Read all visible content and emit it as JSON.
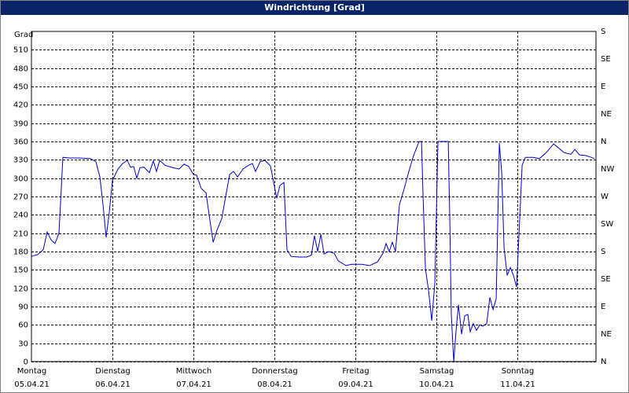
{
  "chart_data": {
    "type": "line",
    "title": "Windrichtung [Grad]",
    "ylabel": "Grad",
    "xlim": [
      0,
      6.97
    ],
    "ylim": [
      0,
      540
    ],
    "y2lim": [
      0,
      540
    ],
    "xticks": [
      {
        "value": 0,
        "label": "Montag"
      },
      {
        "value": 1,
        "label": "Dienstag"
      },
      {
        "value": 2,
        "label": "Mittwoch"
      },
      {
        "value": 3,
        "label": "Donnerstag"
      },
      {
        "value": 4,
        "label": "Freitag"
      },
      {
        "value": 5,
        "label": "Samstag"
      },
      {
        "value": 6,
        "label": "Sonntag"
      }
    ],
    "xtick_dates": [
      "05.04.21",
      "06.04.21",
      "07.04.21",
      "08.04.21",
      "09.04.21",
      "10.04.21",
      "11.04.21"
    ],
    "yticks": [
      0,
      30,
      60,
      90,
      120,
      150,
      180,
      210,
      240,
      270,
      300,
      330,
      360,
      390,
      420,
      450,
      480,
      510
    ],
    "y2ticks": [
      {
        "value": 0,
        "label": "N"
      },
      {
        "value": 45,
        "label": "NE"
      },
      {
        "value": 90,
        "label": "E"
      },
      {
        "value": 135,
        "label": "SE"
      },
      {
        "value": 180,
        "label": "S"
      },
      {
        "value": 225,
        "label": "SW"
      },
      {
        "value": 270,
        "label": "W"
      },
      {
        "value": 315,
        "label": "NW"
      },
      {
        "value": 360,
        "label": "N"
      },
      {
        "value": 405,
        "label": "NE"
      },
      {
        "value": 450,
        "label": "E"
      },
      {
        "value": 495,
        "label": "SE"
      },
      {
        "value": 540,
        "label": "S"
      }
    ],
    "grid": true,
    "series": [
      {
        "color": "#0000cc",
        "x": [
          0,
          0.078,
          0.146,
          0.194,
          0.243,
          0.291,
          0.34,
          0.388,
          0.466,
          0.583,
          0.728,
          0.796,
          0.845,
          0.883,
          0.922,
          0.961,
          1.0,
          1.068,
          1.126,
          1.184,
          1.223,
          1.262,
          1.301,
          1.34,
          1.388,
          1.456,
          1.505,
          1.544,
          1.583,
          1.65,
          1.748,
          1.825,
          1.883,
          1.942,
          2.0,
          2.039,
          2.097,
          2.155,
          2.204,
          2.243,
          2.291,
          2.35,
          2.398,
          2.447,
          2.495,
          2.544,
          2.612,
          2.68,
          2.728,
          2.767,
          2.825,
          2.883,
          2.951,
          2.99,
          3.029,
          3.068,
          3.117,
          3.155,
          3.204,
          3.301,
          3.398,
          3.456,
          3.495,
          3.534,
          3.573,
          3.612,
          3.67,
          3.738,
          3.786,
          3.883,
          3.951,
          4.078,
          4.175,
          4.272,
          4.34,
          4.379,
          4.417,
          4.456,
          4.495,
          4.544,
          4.602,
          4.66,
          4.718,
          4.786,
          4.816,
          4.835,
          4.864,
          4.903,
          4.942,
          4.981,
          5.019,
          5.058,
          5.107,
          5.146,
          5.165,
          5.184,
          5.214,
          5.243,
          5.272,
          5.311,
          5.35,
          5.388,
          5.417,
          5.456,
          5.495,
          5.534,
          5.573,
          5.621,
          5.66,
          5.699,
          5.738,
          5.777,
          5.806,
          5.835,
          5.874,
          5.913,
          5.951,
          5.99,
          6.019,
          6.058,
          6.097,
          6.194,
          6.272,
          6.35,
          6.408,
          6.447,
          6.505,
          6.573,
          6.66,
          6.709,
          6.767,
          6.845,
          6.913,
          6.951
        ],
        "values": [
          172,
          175,
          183,
          212,
          199,
          193,
          210,
          334,
          333,
          333,
          332,
          327,
          302,
          257,
          203,
          244,
          296,
          315,
          324,
          329,
          318,
          319,
          300,
          317,
          318,
          309,
          328,
          311,
          329,
          321,
          317,
          315,
          323,
          319,
          306,
          305,
          283,
          276,
          231,
          195,
          215,
          234,
          270,
          306,
          311,
          302,
          315,
          321,
          324,
          311,
          327,
          329,
          320,
          293,
          267,
          288,
          293,
          183,
          172,
          171,
          171,
          174,
          206,
          180,
          208,
          176,
          180,
          177,
          165,
          157,
          159,
          159,
          157,
          163,
          177,
          193,
          180,
          195,
          180,
          257,
          283,
          311,
          337,
          360,
          360,
          270,
          152,
          116,
          67,
          129,
          360,
          360,
          360,
          360,
          231,
          77,
          0,
          51,
          93,
          45,
          75,
          77,
          49,
          62,
          51,
          60,
          58,
          62,
          105,
          85,
          103,
          357,
          309,
          186,
          141,
          154,
          141,
          122,
          206,
          321,
          334,
          334,
          332,
          341,
          350,
          356,
          350,
          342,
          339,
          347,
          338,
          337,
          334,
          332
        ]
      }
    ]
  }
}
